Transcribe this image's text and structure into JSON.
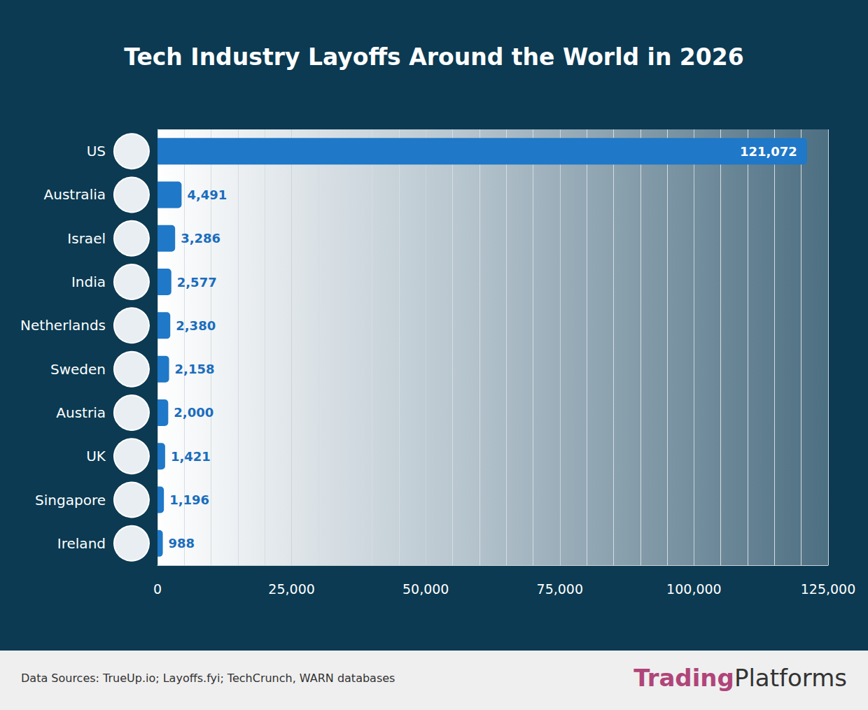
{
  "chart_data": {
    "type": "bar",
    "title": "Tech Industry Layoffs Around the World in 2026",
    "source": "Data Sources: TrueUp.io; Layoffs.fyi; TechCrunch, WARN databases",
    "brand": [
      "Trading",
      "Platforms"
    ],
    "orientation": "horizontal",
    "categories": [
      "US",
      "Australia",
      "Israel",
      "India",
      "Netherlands",
      "Sweden",
      "Austria",
      "UK",
      "Singapore",
      "Ireland"
    ],
    "values": [
      121072,
      4491,
      3286,
      2577,
      2380,
      2158,
      2000,
      1421,
      1196,
      988
    ],
    "value_labels": [
      "121,072",
      "4,491",
      "3,286",
      "2,577",
      "2,380",
      "2,158",
      "2,000",
      "1,421",
      "1,196",
      "988"
    ],
    "data_labels": true,
    "color": "#1f78c8",
    "xlim": [
      0,
      125000
    ],
    "xticks": [
      0,
      {
        "value": 25000,
        "label": "25,000"
      },
      {
        "value": 50000,
        "label": "50,000"
      },
      {
        "value": 75000,
        "label": "75,000"
      },
      {
        "value": 100000,
        "label": "100,000"
      },
      {
        "value": 125000,
        "label": "125,000"
      }
    ],
    "grid": true
  }
}
